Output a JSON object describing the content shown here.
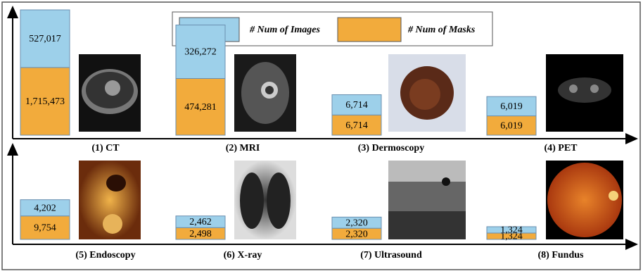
{
  "chart_data": {
    "type": "stacked-bar",
    "categories": [
      "(1) CT",
      "(2) MRI",
      "(3) Dermoscopy",
      "(4) PET",
      "(5) Endoscopy",
      "(6) X-ray",
      "(7) Ultrasound",
      "(8) Fundus"
    ],
    "series": [
      {
        "name": "# Num of Images",
        "color": "#9dd0ea",
        "values": [
          527017,
          326272,
          6714,
          6019,
          4202,
          2462,
          2320,
          1324
        ],
        "value_labels": [
          "527,017",
          "326,272",
          "6,714",
          "6,019",
          "4,202",
          "2,462",
          "2,320",
          "1,324"
        ]
      },
      {
        "name": "# Num of Masks",
        "color": "#f2ab3c",
        "values": [
          1715473,
          474281,
          6714,
          6019,
          9754,
          2498,
          2320,
          1324
        ],
        "value_labels": [
          "1,715,473",
          "474,281",
          "6,714",
          "6,019",
          "9,754",
          "2,498",
          "2,320",
          "1,324"
        ]
      }
    ]
  }
}
